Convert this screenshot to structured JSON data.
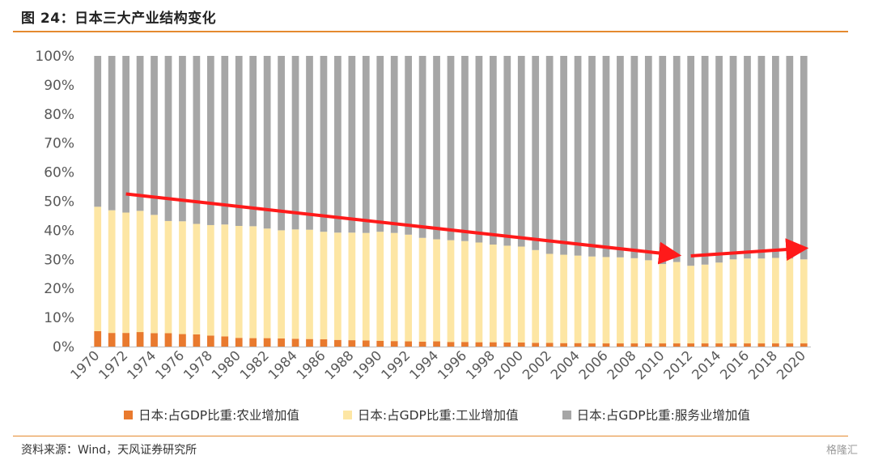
{
  "figure": {
    "title": "图 24：日本三大产业结构变化",
    "source": "资料来源：Wind，天风证券研究所",
    "watermark": "格隆汇"
  },
  "legend": [
    {
      "label": "日本:占GDP比重:农业增加值",
      "color": "#e97a2e"
    },
    {
      "label": "日本:占GDP比重:工业增加值",
      "color": "#fde6a4"
    },
    {
      "label": "日本:占GDP比重:服务业增加值",
      "color": "#a6a6a6"
    }
  ],
  "colors": {
    "arrow": "#ff1a1a",
    "axis": "#bfbfbf",
    "tick_text": "#595959"
  },
  "chart_data": {
    "type": "bar",
    "stacked": true,
    "title": "",
    "xlabel": "",
    "ylabel": "",
    "ylim": [
      0,
      100
    ],
    "yticks": [
      "0%",
      "10%",
      "20%",
      "30%",
      "40%",
      "50%",
      "60%",
      "70%",
      "80%",
      "90%",
      "100%"
    ],
    "x_tick_labels": [
      "1970",
      "1972",
      "1974",
      "1976",
      "1978",
      "1980",
      "1982",
      "1984",
      "1986",
      "1988",
      "1990",
      "1992",
      "1994",
      "1996",
      "1998",
      "2000",
      "2002",
      "2004",
      "2006",
      "2008",
      "2010",
      "2012",
      "2014",
      "2016",
      "2018",
      "2020"
    ],
    "categories": [
      "1970",
      "1971",
      "1972",
      "1973",
      "1974",
      "1975",
      "1976",
      "1977",
      "1978",
      "1979",
      "1980",
      "1981",
      "1982",
      "1983",
      "1984",
      "1985",
      "1986",
      "1987",
      "1988",
      "1989",
      "1990",
      "1991",
      "1992",
      "1993",
      "1994",
      "1995",
      "1996",
      "1997",
      "1998",
      "1999",
      "2000",
      "2001",
      "2002",
      "2003",
      "2004",
      "2005",
      "2006",
      "2007",
      "2008",
      "2009",
      "2010",
      "2011",
      "2012",
      "2013",
      "2014",
      "2015",
      "2016",
      "2017",
      "2018",
      "2019",
      "2020"
    ],
    "series": [
      {
        "name": "日本:占GDP比重:农业增加值",
        "values": [
          5.3,
          4.7,
          4.7,
          5.0,
          4.6,
          4.6,
          4.3,
          4.2,
          3.8,
          3.5,
          3.0,
          2.9,
          2.9,
          2.8,
          2.7,
          2.6,
          2.5,
          2.3,
          2.2,
          2.1,
          2.0,
          1.9,
          1.8,
          1.7,
          1.8,
          1.6,
          1.6,
          1.5,
          1.5,
          1.4,
          1.4,
          1.3,
          1.3,
          1.2,
          1.2,
          1.1,
          1.1,
          1.1,
          1.1,
          1.1,
          1.1,
          1.1,
          1.1,
          1.1,
          1.1,
          1.1,
          1.1,
          1.1,
          1.1,
          1.1,
          1.1
        ]
      },
      {
        "name": "日本:占GDP比重:工业增加值",
        "values": [
          42.8,
          42.2,
          41.4,
          41.7,
          40.7,
          38.6,
          38.8,
          38.0,
          38.0,
          38.5,
          38.5,
          38.5,
          37.7,
          37.2,
          37.6,
          37.6,
          37.0,
          36.9,
          37.0,
          37.0,
          37.5,
          37.2,
          36.7,
          35.7,
          35.1,
          35.0,
          34.7,
          34.3,
          33.6,
          33.3,
          33.0,
          31.9,
          30.6,
          30.4,
          30.1,
          29.9,
          29.7,
          29.6,
          29.3,
          28.6,
          27.3,
          28.0,
          26.7,
          27.1,
          27.8,
          28.9,
          29.2,
          29.2,
          29.4,
          29.2,
          28.9
        ]
      },
      {
        "name": "日本:占GDP比重:服务业增加值",
        "values": [
          51.9,
          53.1,
          53.9,
          53.3,
          54.7,
          56.8,
          56.9,
          57.8,
          58.2,
          58.0,
          58.5,
          58.6,
          59.4,
          60.0,
          59.7,
          59.8,
          60.5,
          60.8,
          60.8,
          60.9,
          60.5,
          60.9,
          61.5,
          62.6,
          63.1,
          63.4,
          63.7,
          64.2,
          64.9,
          65.3,
          65.6,
          66.8,
          68.1,
          68.4,
          68.7,
          69.0,
          69.2,
          69.3,
          69.6,
          70.3,
          71.6,
          70.9,
          72.2,
          71.8,
          71.1,
          70.0,
          69.7,
          69.7,
          69.5,
          69.7,
          70.0
        ]
      }
    ],
    "annotations": [
      {
        "type": "arrow",
        "from": [
          "1972",
          52.5
        ],
        "to": [
          "2011",
          31.5
        ]
      },
      {
        "type": "arrow",
        "from": [
          "2012",
          31.2
        ],
        "to": [
          "2020",
          33.8
        ]
      }
    ],
    "grid": false,
    "legend_position": "bottom"
  }
}
